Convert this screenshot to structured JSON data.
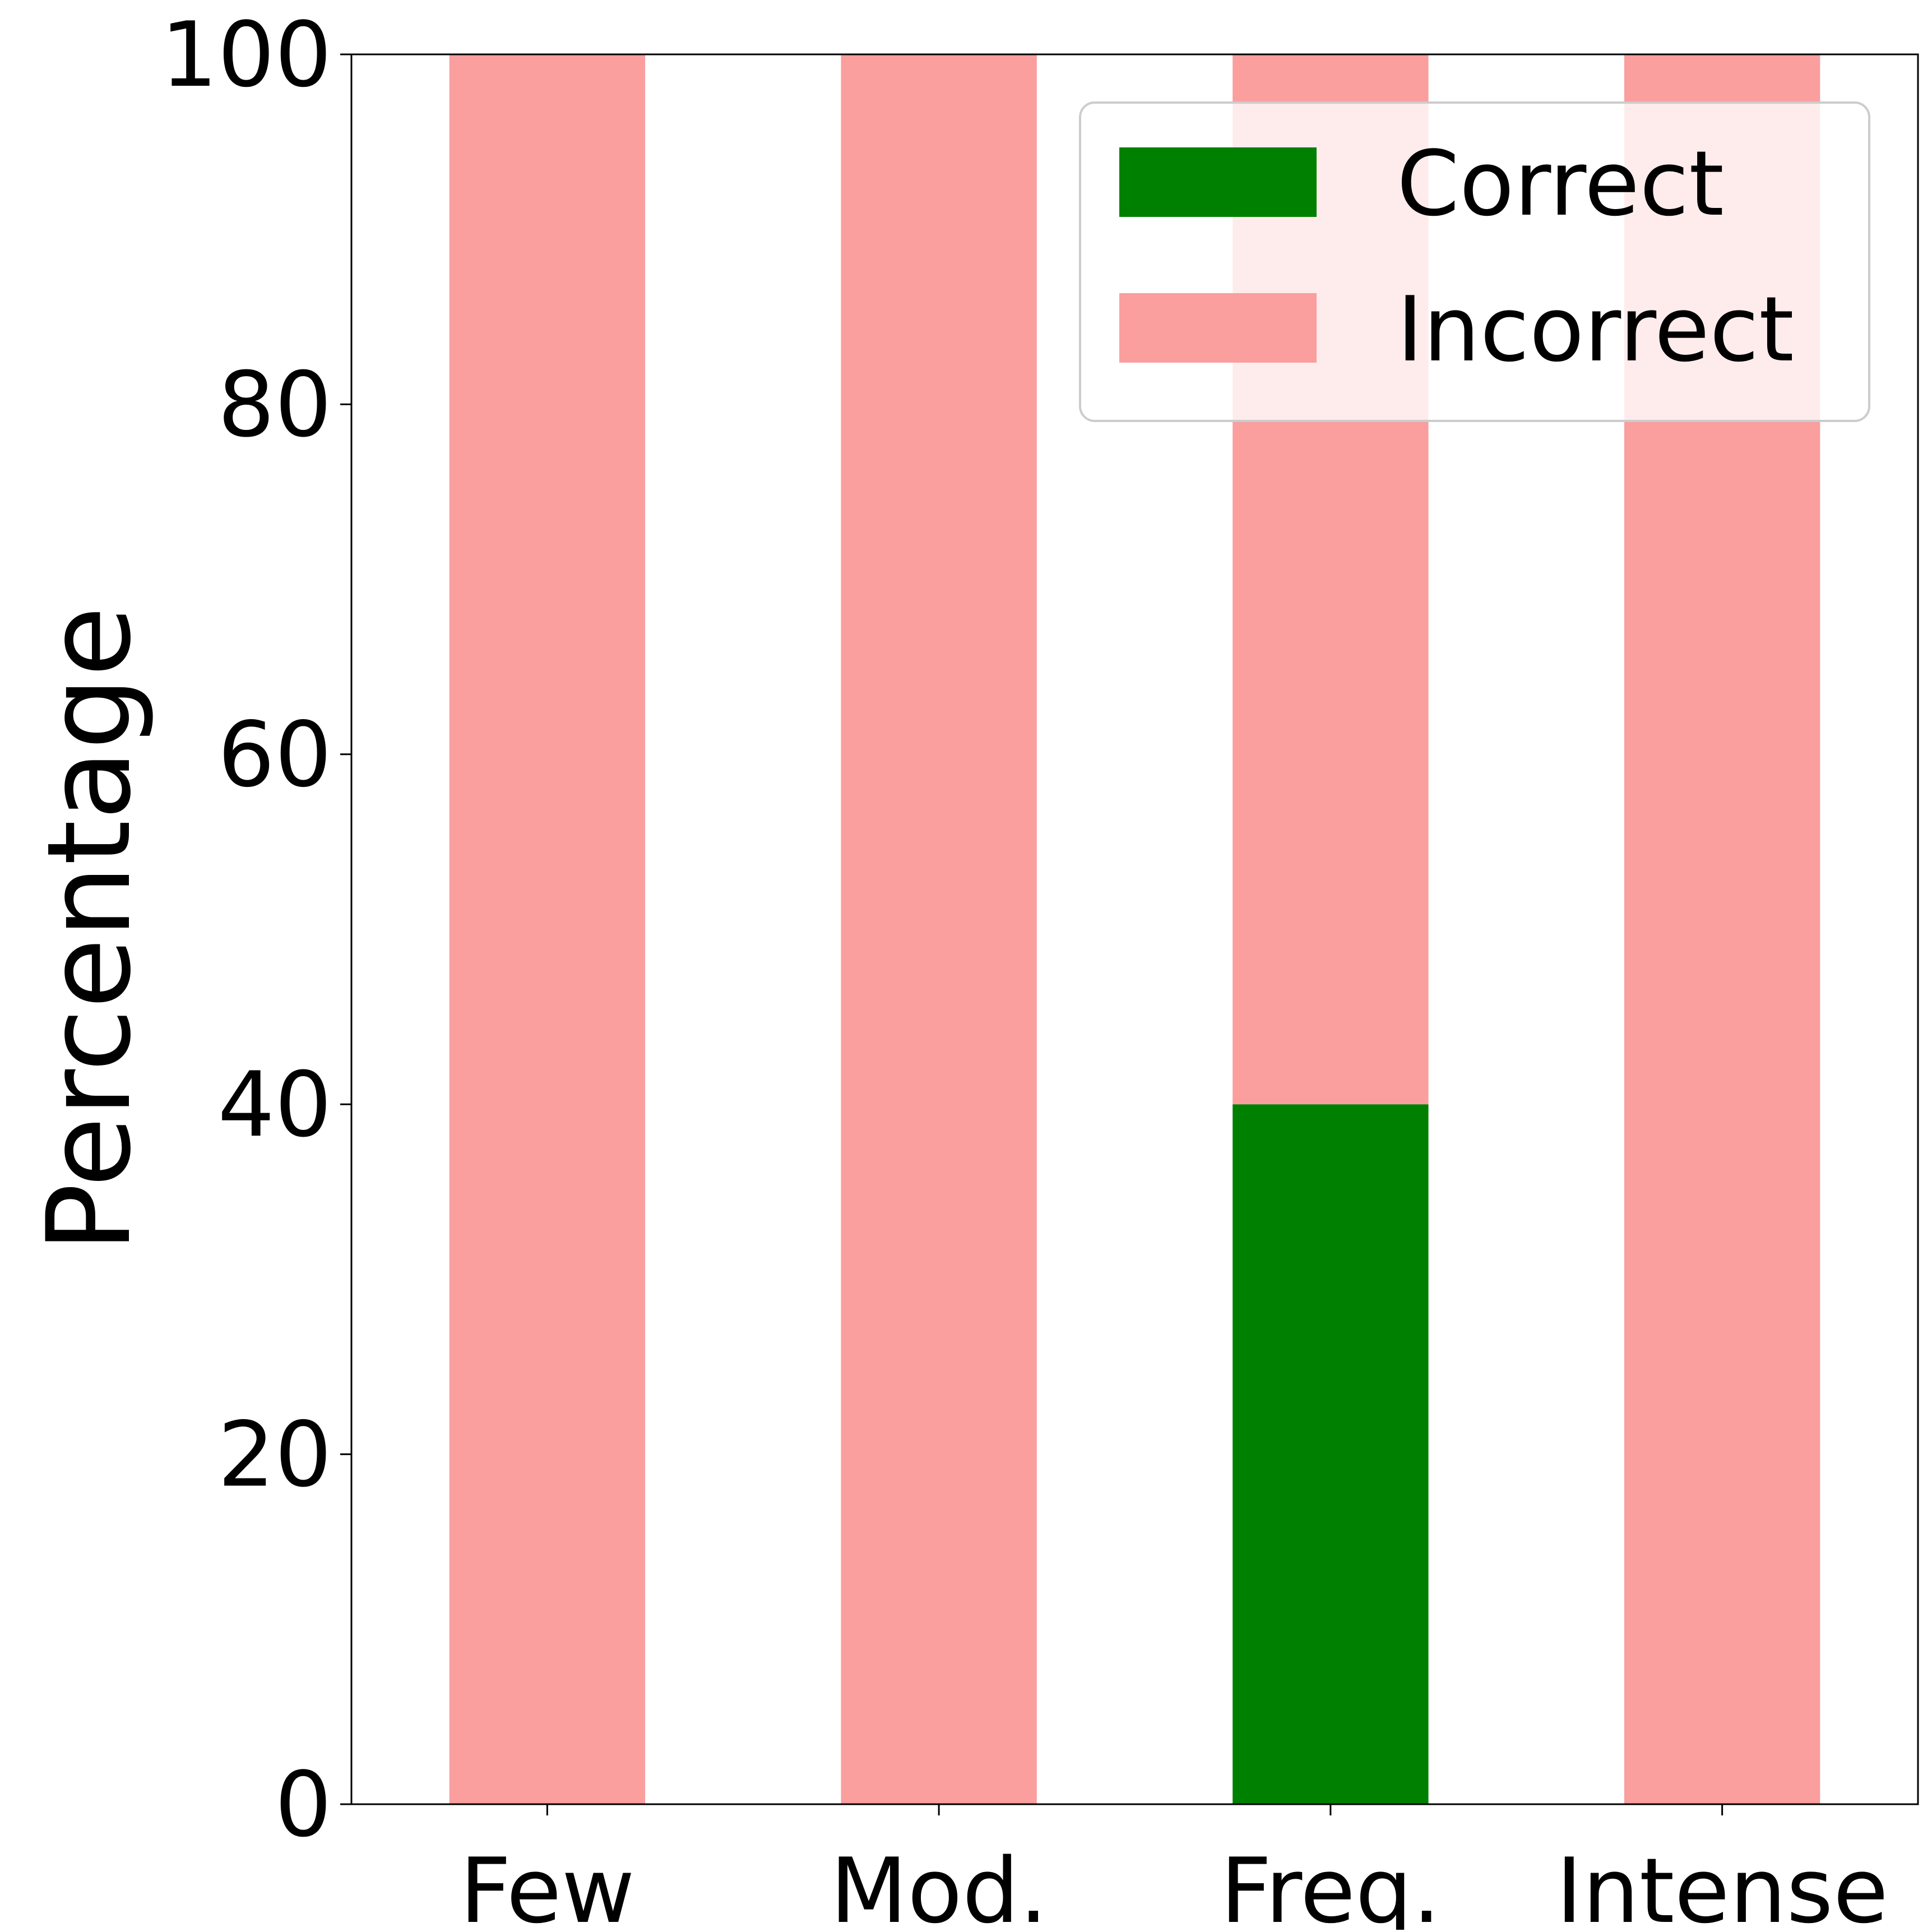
{
  "chart_data": {
    "type": "bar",
    "stacked": true,
    "categories": [
      "Few",
      "Mod.",
      "Freq.",
      "Intense"
    ],
    "series": [
      {
        "name": "Correct",
        "values": [
          0,
          0,
          40,
          0
        ],
        "color": "#008000"
      },
      {
        "name": "Incorrect",
        "values": [
          100,
          100,
          60,
          100
        ],
        "color": "#fa9e9e"
      }
    ],
    "title": "",
    "xlabel": "",
    "ylabel": "Percentage",
    "ylim": [
      0,
      100
    ],
    "yticks": [
      0,
      20,
      40,
      60,
      80,
      100
    ],
    "grid": false,
    "legend": {
      "position": "top-right",
      "entries": [
        "Correct",
        "Incorrect"
      ]
    }
  }
}
